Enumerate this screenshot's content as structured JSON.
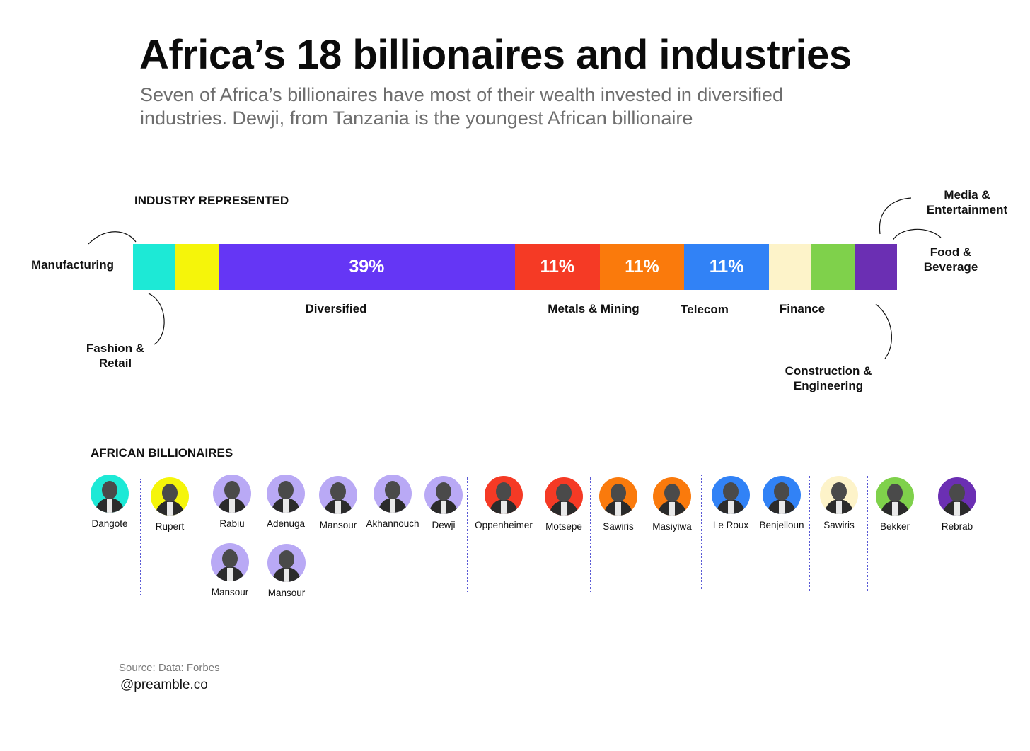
{
  "title": "Africa’s 18 billionaires and industries",
  "subtitle": "Seven of Africa’s billionaires have most of their wealth invested in diversified industries. Dewji, from Tanzania is the youngest African billionaire",
  "industry_section_label": "INDUSTRY REPRESENTED",
  "billionaire_section_label": "AFRICAN BILLIONAIRES",
  "source": "Source: Data: Forbes",
  "handle": "@preamble.co",
  "chart_data": {
    "type": "bar",
    "orientation": "horizontal-stacked",
    "title": "Industry represented",
    "unit": "%",
    "total_billionaires": 18,
    "segments": [
      {
        "name": "Manufacturing",
        "value": 5.6,
        "count": 1,
        "color": "#1de9d6",
        "label": ""
      },
      {
        "name": "Fashion & Retail",
        "value": 5.6,
        "count": 1,
        "color": "#f5f50a",
        "label": ""
      },
      {
        "name": "Diversified",
        "value": 38.9,
        "count": 7,
        "color": "#6536f5",
        "label": "39%"
      },
      {
        "name": "Metals & Mining",
        "value": 11.1,
        "count": 2,
        "color": "#f53a25",
        "label": "11%"
      },
      {
        "name": "Telecom",
        "value": 11.1,
        "count": 2,
        "color": "#fa7a0c",
        "label": "11%"
      },
      {
        "name": "Finance",
        "value": 11.1,
        "count": 2,
        "color": "#3182f6",
        "label": "11%"
      },
      {
        "name": "Construction & Engineering",
        "value": 5.6,
        "count": 1,
        "color": "#fdf3c9",
        "label": ""
      },
      {
        "name": "Media & Entertainment",
        "value": 5.6,
        "count": 1,
        "color": "#7fd14b",
        "label": ""
      },
      {
        "name": "Food & Beverage",
        "value": 5.6,
        "count": 1,
        "color": "#6b2fb3",
        "label": ""
      }
    ],
    "industry_labels": {
      "manufacturing": "Manufacturing",
      "fashion": "Fashion &\nRetail",
      "diversified": "Diversified",
      "metals": "Metals & Mining",
      "telecom": "Telecom",
      "finance": "Finance",
      "construction": "Construction &\nEngineering",
      "media": "Media &\nEntertainment",
      "food": "Food &\nBeverage"
    },
    "billionaires": [
      {
        "name": "Dangote",
        "industry": "Manufacturing",
        "color": "#1de9d6"
      },
      {
        "name": "Rupert",
        "industry": "Fashion & Retail",
        "color": "#f5f50a"
      },
      {
        "name": "Rabiu",
        "industry": "Diversified",
        "color": "#b9a9f5"
      },
      {
        "name": "Adenuga",
        "industry": "Diversified",
        "color": "#b9a9f5"
      },
      {
        "name": "Mansour",
        "industry": "Diversified",
        "color": "#b9a9f5"
      },
      {
        "name": "Akhannouch",
        "industry": "Diversified",
        "color": "#b9a9f5"
      },
      {
        "name": "Dewji",
        "industry": "Diversified",
        "color": "#b9a9f5"
      },
      {
        "name": "Mansour",
        "industry": "Diversified",
        "color": "#b9a9f5"
      },
      {
        "name": "Mansour",
        "industry": "Diversified",
        "color": "#b9a9f5"
      },
      {
        "name": "Oppenheimer",
        "industry": "Metals & Mining",
        "color": "#f53a25"
      },
      {
        "name": "Motsepe",
        "industry": "Metals & Mining",
        "color": "#f53a25"
      },
      {
        "name": "Sawiris",
        "industry": "Telecom",
        "color": "#fa7a0c"
      },
      {
        "name": "Masiyiwa",
        "industry": "Telecom",
        "color": "#fa7a0c"
      },
      {
        "name": "Le Roux",
        "industry": "Finance",
        "color": "#3182f6"
      },
      {
        "name": "Benjelloun",
        "industry": "Finance",
        "color": "#3182f6"
      },
      {
        "name": "Sawiris",
        "industry": "Construction & Engineering",
        "color": "#fdf3c9"
      },
      {
        "name": "Bekker",
        "industry": "Media & Entertainment",
        "color": "#7fd14b"
      },
      {
        "name": "Rebrab",
        "industry": "Food & Beverage",
        "color": "#6b2fb3"
      }
    ]
  }
}
